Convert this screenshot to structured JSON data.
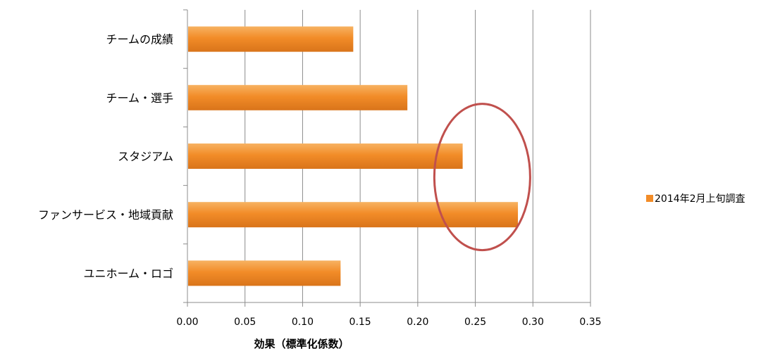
{
  "chart_data": {
    "type": "bar",
    "orientation": "horizontal",
    "categories": [
      "チームの成績",
      "チーム・選手",
      "スタジアム",
      "ファンサービス・地域貢献",
      "ユニホーム・ロゴ"
    ],
    "series": [
      {
        "name": "2014年2月上旬調査",
        "values": [
          0.144,
          0.191,
          0.239,
          0.287,
          0.133
        ],
        "color": "#f28c28"
      }
    ],
    "xlabel": "効果（標準化係数）",
    "xlim": [
      0,
      0.35
    ],
    "xticks": [
      "0.00",
      "0.05",
      "0.10",
      "0.15",
      "0.20",
      "0.25",
      "0.30",
      "0.35"
    ],
    "grid": true,
    "legend_position": "right",
    "annotation": {
      "type": "ellipse",
      "center_value": 0.256,
      "color": "#c0504d"
    }
  }
}
